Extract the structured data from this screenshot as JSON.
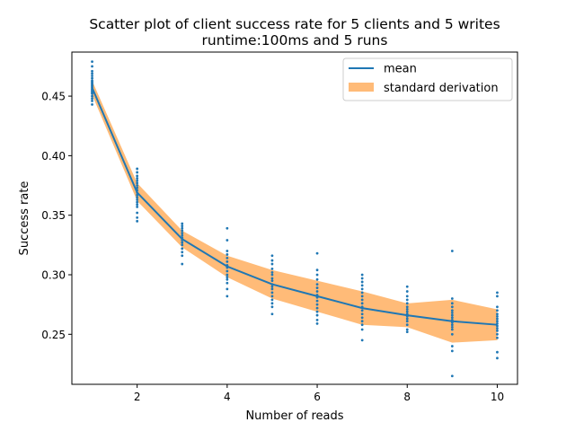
{
  "chart_data": {
    "type": "scatter",
    "title": "Scatter plot of client success rate for 5 clients and 5 writes",
    "subtitle": "runtime:100ms and 5 runs",
    "xlabel": "Number of reads",
    "ylabel": "Success rate",
    "xlim": [
      0.55,
      10.45
    ],
    "ylim": [
      0.208,
      0.487
    ],
    "x_ticks": [
      "2",
      "4",
      "6",
      "8",
      "10"
    ],
    "y_ticks": [
      "0.25",
      "0.30",
      "0.35",
      "0.40",
      "0.45"
    ],
    "grid": false,
    "legend_position": "top-right",
    "colors": {
      "mean": "#1f77b4",
      "band": "#ffbb78",
      "points": "#1f77b4"
    },
    "series": [
      {
        "name": "mean",
        "type": "line",
        "x": [
          1,
          2,
          3,
          4,
          5,
          6,
          7,
          8,
          9,
          10
        ],
        "y": [
          0.457,
          0.369,
          0.33,
          0.307,
          0.292,
          0.282,
          0.272,
          0.266,
          0.261,
          0.258
        ]
      },
      {
        "name": "standard derivation",
        "type": "band",
        "x": [
          1,
          2,
          3,
          4,
          5,
          6,
          7,
          8,
          9,
          10
        ],
        "lower": [
          0.451,
          0.362,
          0.323,
          0.298,
          0.28,
          0.269,
          0.258,
          0.256,
          0.243,
          0.245
        ],
        "upper": [
          0.463,
          0.377,
          0.337,
          0.316,
          0.304,
          0.295,
          0.286,
          0.276,
          0.279,
          0.271
        ]
      },
      {
        "type": "points",
        "points": [
          [
            1,
            0.479
          ],
          [
            1,
            0.475
          ],
          [
            1,
            0.471
          ],
          [
            1,
            0.469
          ],
          [
            1,
            0.467
          ],
          [
            1,
            0.465
          ],
          [
            1,
            0.463
          ],
          [
            1,
            0.462
          ],
          [
            1,
            0.461
          ],
          [
            1,
            0.46
          ],
          [
            1,
            0.459
          ],
          [
            1,
            0.458
          ],
          [
            1,
            0.457
          ],
          [
            1,
            0.456
          ],
          [
            1,
            0.455
          ],
          [
            1,
            0.454
          ],
          [
            1,
            0.453
          ],
          [
            1,
            0.452
          ],
          [
            1,
            0.45
          ],
          [
            1,
            0.448
          ],
          [
            1,
            0.446
          ],
          [
            1,
            0.443
          ],
          [
            2,
            0.389
          ],
          [
            2,
            0.386
          ],
          [
            2,
            0.383
          ],
          [
            2,
            0.381
          ],
          [
            2,
            0.379
          ],
          [
            2,
            0.377
          ],
          [
            2,
            0.375
          ],
          [
            2,
            0.373
          ],
          [
            2,
            0.371
          ],
          [
            2,
            0.369
          ],
          [
            2,
            0.367
          ],
          [
            2,
            0.365
          ],
          [
            2,
            0.363
          ],
          [
            2,
            0.361
          ],
          [
            2,
            0.359
          ],
          [
            2,
            0.357
          ],
          [
            2,
            0.352
          ],
          [
            2,
            0.348
          ],
          [
            2,
            0.345
          ],
          [
            3,
            0.343
          ],
          [
            3,
            0.341
          ],
          [
            3,
            0.339
          ],
          [
            3,
            0.337
          ],
          [
            3,
            0.335
          ],
          [
            3,
            0.333
          ],
          [
            3,
            0.331
          ],
          [
            3,
            0.329
          ],
          [
            3,
            0.327
          ],
          [
            3,
            0.325
          ],
          [
            3,
            0.322
          ],
          [
            3,
            0.319
          ],
          [
            3,
            0.316
          ],
          [
            3,
            0.309
          ],
          [
            4,
            0.339
          ],
          [
            4,
            0.329
          ],
          [
            4,
            0.32
          ],
          [
            4,
            0.317
          ],
          [
            4,
            0.314
          ],
          [
            4,
            0.311
          ],
          [
            4,
            0.308
          ],
          [
            4,
            0.306
          ],
          [
            4,
            0.303
          ],
          [
            4,
            0.3
          ],
          [
            4,
            0.298
          ],
          [
            4,
            0.296
          ],
          [
            4,
            0.293
          ],
          [
            4,
            0.288
          ],
          [
            4,
            0.282
          ],
          [
            5,
            0.316
          ],
          [
            5,
            0.312
          ],
          [
            5,
            0.309
          ],
          [
            5,
            0.305
          ],
          [
            5,
            0.302
          ],
          [
            5,
            0.3
          ],
          [
            5,
            0.297
          ],
          [
            5,
            0.295
          ],
          [
            5,
            0.292
          ],
          [
            5,
            0.29
          ],
          [
            5,
            0.288
          ],
          [
            5,
            0.285
          ],
          [
            5,
            0.282
          ],
          [
            5,
            0.279
          ],
          [
            5,
            0.276
          ],
          [
            5,
            0.273
          ],
          [
            5,
            0.267
          ],
          [
            6,
            0.318
          ],
          [
            6,
            0.304
          ],
          [
            6,
            0.3
          ],
          [
            6,
            0.296
          ],
          [
            6,
            0.292
          ],
          [
            6,
            0.289
          ],
          [
            6,
            0.286
          ],
          [
            6,
            0.283
          ],
          [
            6,
            0.281
          ],
          [
            6,
            0.278
          ],
          [
            6,
            0.275
          ],
          [
            6,
            0.272
          ],
          [
            6,
            0.269
          ],
          [
            6,
            0.266
          ],
          [
            6,
            0.262
          ],
          [
            6,
            0.259
          ],
          [
            7,
            0.3
          ],
          [
            7,
            0.297
          ],
          [
            7,
            0.294
          ],
          [
            7,
            0.291
          ],
          [
            7,
            0.288
          ],
          [
            7,
            0.285
          ],
          [
            7,
            0.282
          ],
          [
            7,
            0.279
          ],
          [
            7,
            0.276
          ],
          [
            7,
            0.273
          ],
          [
            7,
            0.27
          ],
          [
            7,
            0.267
          ],
          [
            7,
            0.264
          ],
          [
            7,
            0.261
          ],
          [
            7,
            0.258
          ],
          [
            7,
            0.254
          ],
          [
            7,
            0.245
          ],
          [
            8,
            0.29
          ],
          [
            8,
            0.286
          ],
          [
            8,
            0.282
          ],
          [
            8,
            0.279
          ],
          [
            8,
            0.276
          ],
          [
            8,
            0.273
          ],
          [
            8,
            0.271
          ],
          [
            8,
            0.269
          ],
          [
            8,
            0.267
          ],
          [
            8,
            0.265
          ],
          [
            8,
            0.263
          ],
          [
            8,
            0.261
          ],
          [
            8,
            0.258
          ],
          [
            8,
            0.254
          ],
          [
            8,
            0.252
          ],
          [
            9,
            0.32
          ],
          [
            9,
            0.28
          ],
          [
            9,
            0.276
          ],
          [
            9,
            0.273
          ],
          [
            9,
            0.27
          ],
          [
            9,
            0.268
          ],
          [
            9,
            0.266
          ],
          [
            9,
            0.264
          ],
          [
            9,
            0.262
          ],
          [
            9,
            0.26
          ],
          [
            9,
            0.258
          ],
          [
            9,
            0.256
          ],
          [
            9,
            0.254
          ],
          [
            9,
            0.25
          ],
          [
            9,
            0.24
          ],
          [
            9,
            0.236
          ],
          [
            9,
            0.215
          ],
          [
            10,
            0.285
          ],
          [
            10,
            0.282
          ],
          [
            10,
            0.273
          ],
          [
            10,
            0.27
          ],
          [
            10,
            0.267
          ],
          [
            10,
            0.265
          ],
          [
            10,
            0.263
          ],
          [
            10,
            0.261
          ],
          [
            10,
            0.259
          ],
          [
            10,
            0.257
          ],
          [
            10,
            0.255
          ],
          [
            10,
            0.253
          ],
          [
            10,
            0.25
          ],
          [
            10,
            0.247
          ],
          [
            10,
            0.235
          ],
          [
            10,
            0.23
          ]
        ]
      }
    ]
  }
}
